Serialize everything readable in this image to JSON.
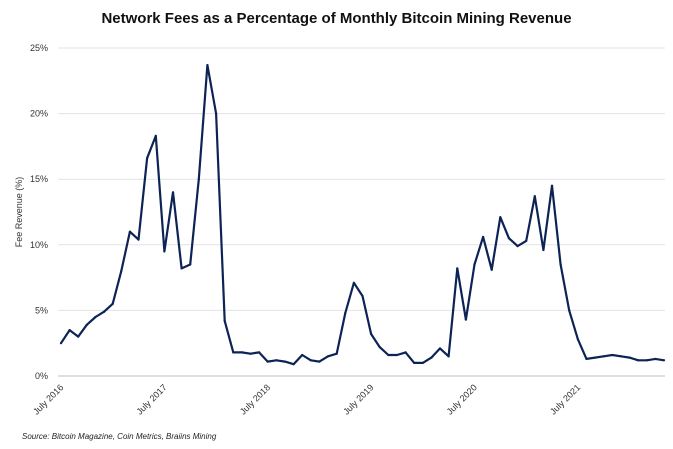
{
  "chart_data": {
    "type": "line",
    "title": "Network Fees as a Percentage of Monthly Bitcoin Mining Revenue",
    "ylabel": "Fee Revenue (%)",
    "xlabel": "",
    "ylim": [
      0,
      25
    ],
    "y_ticks": [
      "0%",
      "5%",
      "10%",
      "15%",
      "20%",
      "25%"
    ],
    "x_ticks": [
      {
        "label": "July 2016",
        "month_index": 0
      },
      {
        "label": "July 2017",
        "month_index": 12
      },
      {
        "label": "July 2018",
        "month_index": 24
      },
      {
        "label": "July 2019",
        "month_index": 36
      },
      {
        "label": "July 2020",
        "month_index": 48
      },
      {
        "label": "July 2021",
        "month_index": 60
      }
    ],
    "grid": "horizontal",
    "line_color": "#0d2355",
    "series": [
      {
        "values": [
          2.5,
          3.5,
          3.0,
          3.9,
          4.5,
          4.9,
          5.5,
          8.0,
          11.0,
          10.4,
          16.6,
          18.3,
          9.5,
          14.0,
          8.2,
          8.5,
          15.0,
          23.7,
          20.0,
          4.2,
          1.8,
          1.8,
          1.7,
          1.8,
          1.1,
          1.2,
          1.1,
          0.9,
          1.6,
          1.2,
          1.1,
          1.5,
          1.7,
          4.8,
          7.1,
          6.1,
          3.2,
          2.2,
          1.6,
          1.6,
          1.8,
          1.0,
          1.0,
          1.4,
          2.1,
          1.5,
          8.2,
          4.3,
          8.5,
          10.6,
          8.1,
          12.1,
          10.5,
          9.9,
          10.3,
          13.7,
          9.6,
          14.5,
          8.5,
          5.0,
          2.8,
          1.3,
          1.4,
          1.5,
          1.6,
          1.5,
          1.4,
          1.2,
          1.2,
          1.3,
          1.2
        ]
      }
    ]
  },
  "source": "Source: Bitcoin Magazine, Coin Metrics, Braiins Mining"
}
